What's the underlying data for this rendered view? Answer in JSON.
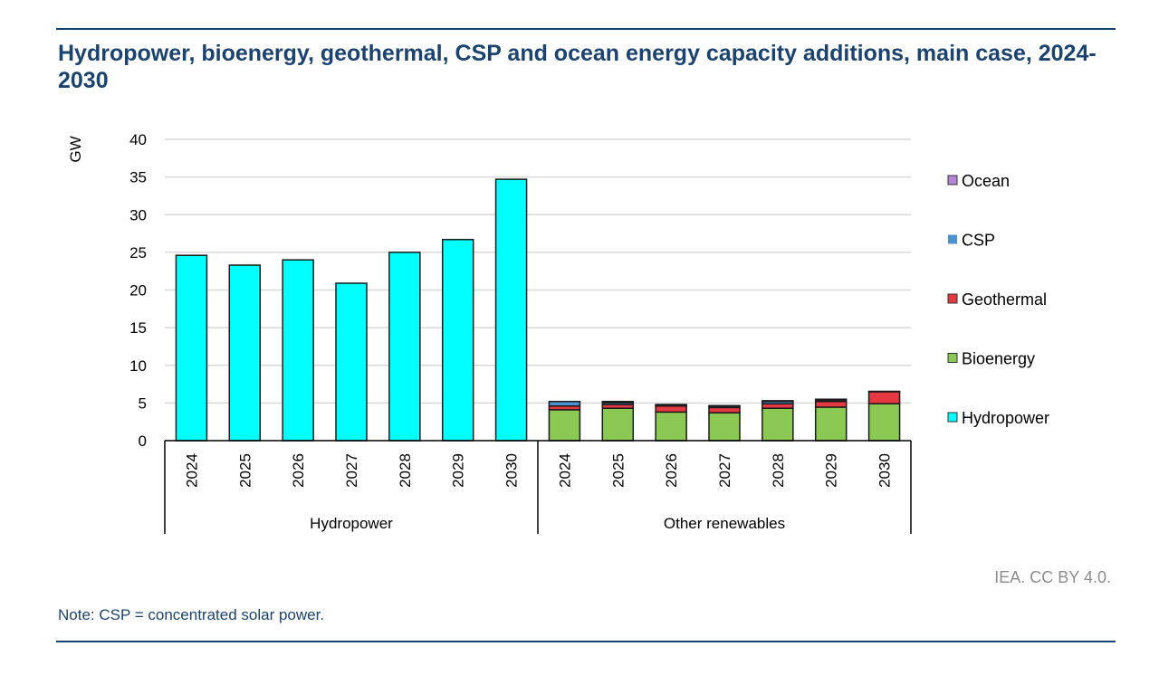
{
  "header": {
    "title": "Hydropower, bioenergy, geothermal, CSP and ocean energy capacity additions, main case, 2024-2030"
  },
  "footer": {
    "credit": "IEA. CC BY 4.0.",
    "note": "Note: CSP = concentrated solar power."
  },
  "colors": {
    "Hydropower": "#00ffff",
    "Bioenergy": "#8bc954",
    "Geothermal": "#e63840",
    "CSP": "#4c92d0",
    "Ocean": "#b285d6",
    "title": "#1b4370",
    "gridline": "#d9d9d9"
  },
  "chart_data": {
    "type": "bar",
    "stacked": true,
    "title": "Hydropower, bioenergy, geothermal, CSP and ocean energy capacity additions, main case, 2024-2030",
    "xlabel": "",
    "ylabel": "GW",
    "ylim": [
      0,
      40
    ],
    "yticks": [
      0,
      5,
      10,
      15,
      20,
      25,
      30,
      35,
      40
    ],
    "grid": true,
    "legend_position": "right",
    "legend": [
      "Ocean",
      "CSP",
      "Geothermal",
      "Bioenergy",
      "Hydropower"
    ],
    "groups": [
      {
        "name": "Hydropower",
        "categories": [
          "2024",
          "2025",
          "2026",
          "2027",
          "2028",
          "2029",
          "2030"
        ],
        "series": [
          {
            "name": "Hydropower",
            "values": [
              24.6,
              23.3,
              24.0,
              20.9,
              25.0,
              26.7,
              34.7
            ]
          }
        ]
      },
      {
        "name": "Other renewables",
        "categories": [
          "2024",
          "2025",
          "2026",
          "2027",
          "2028",
          "2029",
          "2030"
        ],
        "series": [
          {
            "name": "Bioenergy",
            "values": [
              4.1,
              4.3,
              3.8,
              3.7,
              4.3,
              4.45,
              4.9
            ]
          },
          {
            "name": "Geothermal",
            "values": [
              0.5,
              0.5,
              0.8,
              0.7,
              0.6,
              0.75,
              1.6
            ]
          },
          {
            "name": "CSP",
            "values": [
              0.6,
              0.25,
              0.1,
              0.2,
              0.3,
              0.2,
              0.0
            ]
          },
          {
            "name": "Ocean",
            "values": [
              0.0,
              0.15,
              0.1,
              0.05,
              0.1,
              0.1,
              0.05
            ]
          }
        ]
      }
    ]
  }
}
